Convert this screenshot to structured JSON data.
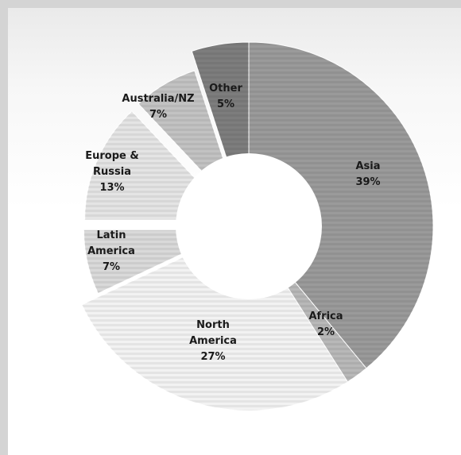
{
  "chart_data": {
    "type": "pie",
    "variant": "donut",
    "title": "",
    "unit": "%",
    "slices": [
      {
        "label": "Asia",
        "value": 39,
        "color": "#9a9a9a",
        "text_lines": [
          "Asia",
          "39%"
        ]
      },
      {
        "label": "Africa",
        "value": 2,
        "color": "#b8b8b8",
        "text_lines": [
          "Africa",
          "2%"
        ]
      },
      {
        "label": "North America",
        "value": 27,
        "color": "#f2f2f2",
        "text_lines": [
          "North",
          "America",
          "27%"
        ]
      },
      {
        "label": "Latin America",
        "value": 7,
        "color": "#d9d9d9",
        "text_lines": [
          "Latin",
          "America",
          "7%"
        ]
      },
      {
        "label": "Europe & Russia",
        "value": 13,
        "color": "#e4e4e4",
        "text_lines": [
          "Europe &",
          "Russia",
          "13%"
        ]
      },
      {
        "label": "Australia/NZ",
        "value": 7,
        "color": "#c2c2c2",
        "text_lines": [
          "Australia/NZ",
          "7%"
        ]
      },
      {
        "label": "Other",
        "value": 5,
        "color": "#7d7d7d",
        "text_lines": [
          "Other",
          "5%"
        ]
      }
    ]
  }
}
